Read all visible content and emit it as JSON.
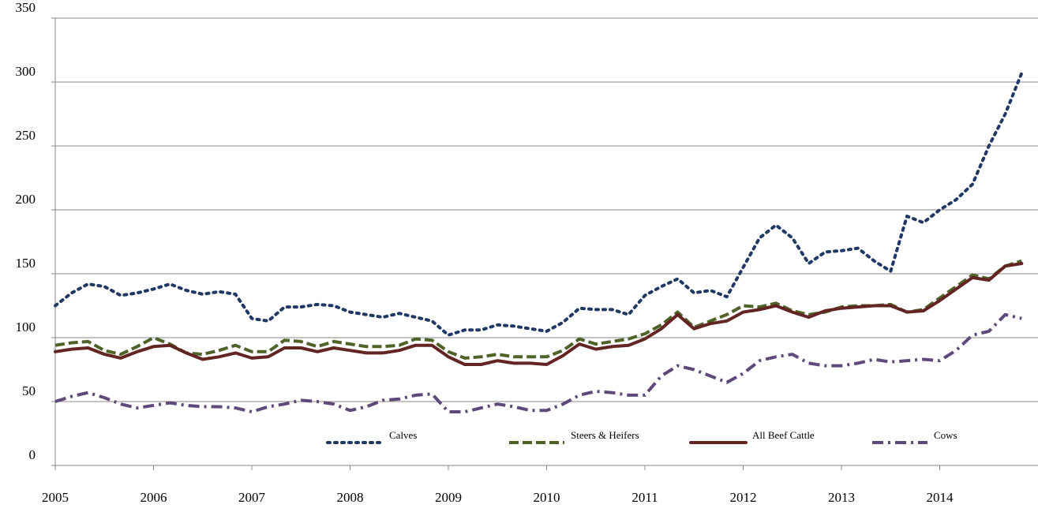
{
  "chart_data": {
    "type": "line",
    "categories": [
      "2005",
      null,
      null,
      null,
      null,
      null,
      "2006",
      null,
      null,
      null,
      null,
      null,
      "2007",
      null,
      null,
      null,
      null,
      null,
      "2008",
      null,
      null,
      null,
      null,
      null,
      "2009",
      null,
      null,
      null,
      null,
      null,
      "2010",
      null,
      null,
      null,
      null,
      null,
      "2011",
      null,
      null,
      null,
      null,
      null,
      "2012",
      null,
      null,
      null,
      null,
      null,
      "2013",
      null,
      null,
      null,
      null,
      null,
      "2014",
      null,
      null,
      null,
      null,
      null
    ],
    "series": [
      {
        "name": "Calves",
        "color": "#1f3864",
        "dash": "dotted",
        "values": [
          125,
          135,
          142,
          140,
          133,
          135,
          138,
          142,
          137,
          134,
          136,
          134,
          115,
          113,
          124,
          124,
          126,
          125,
          120,
          118,
          116,
          119,
          116,
          113,
          102,
          106,
          106,
          110,
          109,
          107,
          105,
          112,
          123,
          122,
          122,
          118,
          133,
          140,
          146,
          135,
          137,
          132,
          155,
          178,
          188,
          178,
          158,
          167,
          168,
          170,
          160,
          152,
          195,
          190,
          200,
          208,
          220,
          250,
          275,
          307
        ]
      },
      {
        "name": "Steers & Heifers",
        "color": "#4f6228",
        "dash": "dashed",
        "values": [
          94,
          96,
          97,
          90,
          87,
          93,
          100,
          95,
          88,
          87,
          90,
          94,
          89,
          89,
          98,
          97,
          93,
          97,
          95,
          93,
          93,
          94,
          99,
          98,
          89,
          84,
          85,
          87,
          85,
          85,
          85,
          90,
          99,
          95,
          97,
          99,
          103,
          110,
          120,
          108,
          113,
          118,
          125,
          124,
          127,
          121,
          118,
          120,
          124,
          125,
          125,
          126,
          120,
          122,
          131,
          140,
          149,
          146,
          156,
          160
        ]
      },
      {
        "name": "All Beef Cattle",
        "color": "#632523",
        "dash": "solid",
        "values": [
          89,
          91,
          92,
          87,
          84,
          89,
          93,
          94,
          88,
          83,
          85,
          88,
          84,
          85,
          92,
          92,
          89,
          92,
          90,
          88,
          88,
          90,
          94,
          94,
          85,
          79,
          79,
          82,
          80,
          80,
          79,
          86,
          95,
          91,
          93,
          94,
          99,
          107,
          118,
          107,
          111,
          113,
          120,
          122,
          125,
          120,
          116,
          121,
          123,
          124,
          125,
          125,
          120,
          121,
          129,
          138,
          147,
          145,
          156,
          158
        ]
      },
      {
        "name": "Cows",
        "color": "#5f497a",
        "dash": "dashdot",
        "values": [
          50,
          54,
          57,
          53,
          48,
          45,
          47,
          49,
          47,
          46,
          46,
          45,
          42,
          46,
          48,
          51,
          50,
          48,
          43,
          46,
          51,
          52,
          55,
          56,
          42,
          42,
          45,
          48,
          46,
          43,
          43,
          48,
          55,
          58,
          57,
          55,
          55,
          70,
          78,
          75,
          70,
          65,
          72,
          82,
          85,
          87,
          80,
          78,
          78,
          80,
          83,
          81,
          82,
          83,
          82,
          90,
          102,
          105,
          118,
          115
        ]
      }
    ],
    "ylim": [
      0,
      350
    ],
    "yticks": [
      0,
      50,
      100,
      150,
      200,
      250,
      300,
      350
    ],
    "grid": true,
    "legend": "bottom-center"
  }
}
